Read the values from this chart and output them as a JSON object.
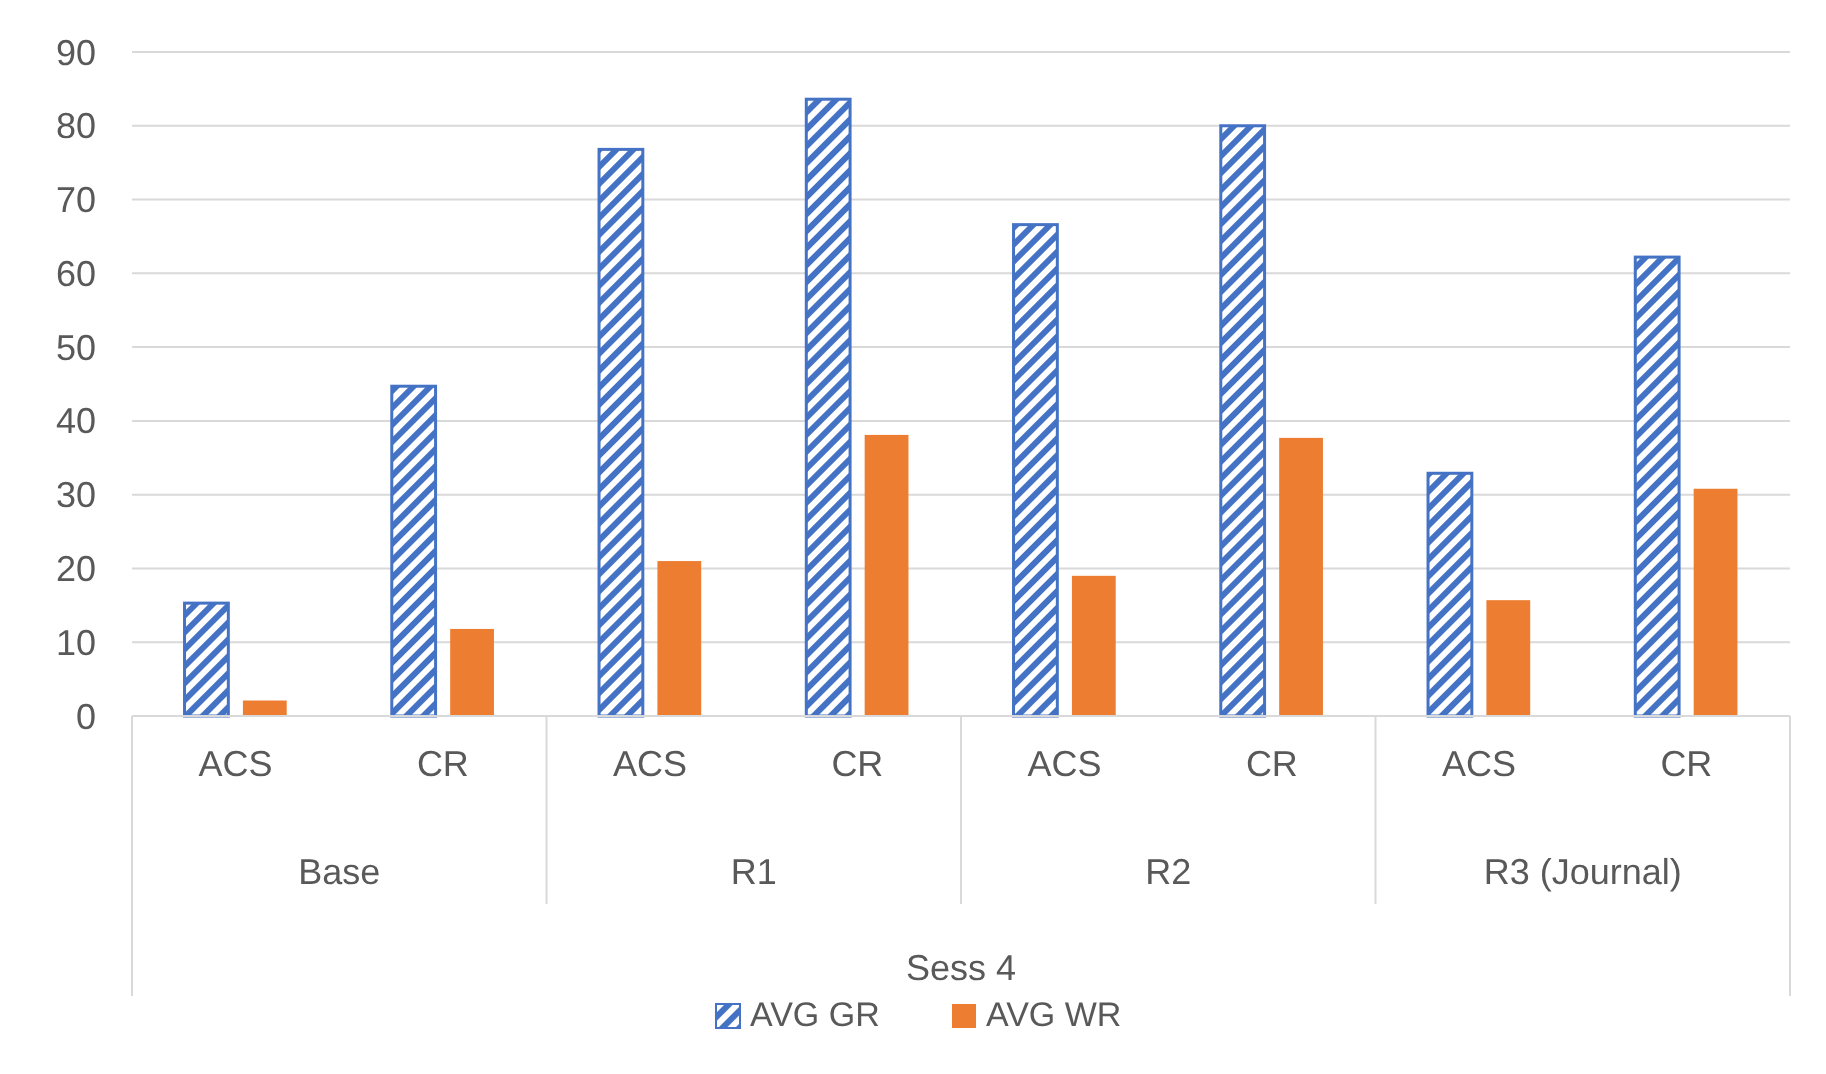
{
  "chart_data": {
    "type": "bar",
    "categories": [
      "ACS",
      "CR",
      "ACS",
      "CR",
      "ACS",
      "CR",
      "ACS",
      "CR"
    ],
    "annotations": [
      "Base",
      "R1",
      "R2",
      "R3 (Journal)"
    ],
    "xlabel": "Sess 4",
    "series": [
      {
        "name": "AVG GR",
        "color": "#4472c4",
        "values": [
          15.3,
          44.7,
          76.8,
          83.6,
          66.6,
          80,
          32.9,
          62.2
        ]
      },
      {
        "name": "AVG WR",
        "color": "#ed7d31",
        "values": [
          2.1,
          11.8,
          21,
          38.1,
          19,
          37.7,
          15.7,
          30.8
        ]
      }
    ],
    "ylim": [
      0,
      90
    ],
    "yticks": [
      0,
      10,
      20,
      30,
      40,
      50,
      60,
      70,
      80,
      90
    ],
    "grid": "y",
    "legend": "bottom"
  }
}
